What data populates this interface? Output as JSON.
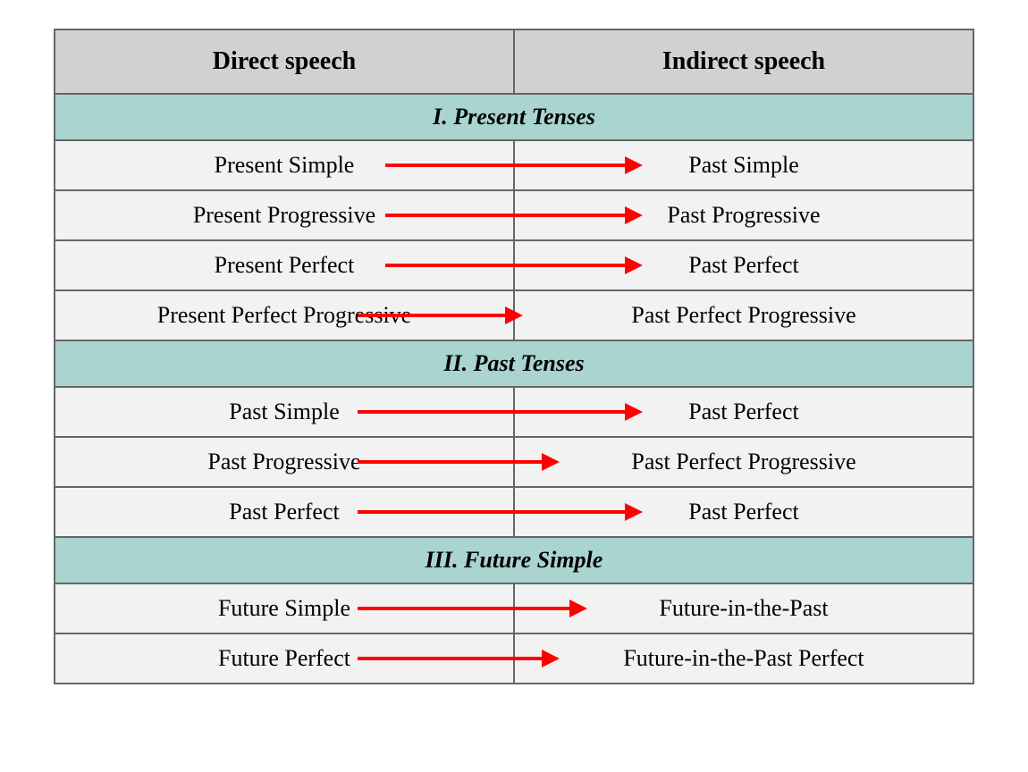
{
  "headers": {
    "left": "Direct speech",
    "right": "Indirect speech"
  },
  "sections": [
    {
      "title": "I. Present Tenses",
      "rows": [
        {
          "left": "Present Simple",
          "right": "Past Simple",
          "arrowLeft": "36%",
          "arrowWidth": "28%"
        },
        {
          "left": "Present Progressive",
          "right": "Past Progressive",
          "arrowLeft": "36%",
          "arrowWidth": "28%"
        },
        {
          "left": "Present Perfect",
          "right": "Past Perfect",
          "arrowLeft": "36%",
          "arrowWidth": "28%"
        },
        {
          "left": "Present Perfect Progressive",
          "right": "Past Perfect Progressive",
          "arrowLeft": "33%",
          "arrowWidth": "18%"
        }
      ]
    },
    {
      "title": "II. Past Tenses",
      "rows": [
        {
          "left": "Past Simple",
          "right": "Past Perfect",
          "arrowLeft": "33%",
          "arrowWidth": "31%"
        },
        {
          "left": "Past Progressive",
          "right": "Past Perfect Progressive",
          "arrowLeft": "33%",
          "arrowWidth": "22%"
        },
        {
          "left": "Past Perfect",
          "right": "Past Perfect",
          "arrowLeft": "33%",
          "arrowWidth": "31%"
        }
      ]
    },
    {
      "title": "III. Future Simple",
      "rows": [
        {
          "left": "Future Simple",
          "right": "Future-in-the-Past",
          "arrowLeft": "33%",
          "arrowWidth": "25%"
        },
        {
          "left": "Future Perfect",
          "right": "Future-in-the-Past Perfect",
          "arrowLeft": "33%",
          "arrowWidth": "22%"
        }
      ]
    }
  ],
  "colors": {
    "headerBg": "#d1d1d1",
    "sectionBg": "#a9d4d0",
    "contentBg": "#f2f2f2",
    "border": "#666666",
    "arrow": "#ff0000"
  }
}
